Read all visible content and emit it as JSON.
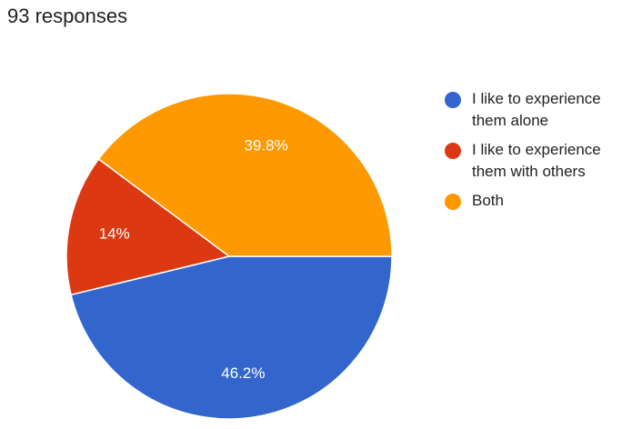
{
  "header": {
    "responses": "93 responses"
  },
  "chart_data": {
    "type": "pie",
    "categories": [
      "I like to experience them alone",
      "I like to experience them with others",
      "Both"
    ],
    "values": [
      46.2,
      14,
      39.8
    ],
    "value_labels": [
      "46.2%",
      "14%",
      "39.8%"
    ],
    "colors": [
      "#3366cc",
      "#dc3912",
      "#ff9900"
    ],
    "legend_position": "right"
  }
}
